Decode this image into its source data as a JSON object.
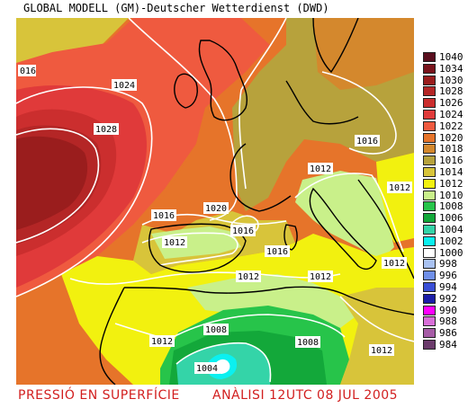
{
  "header": {
    "title": "GLOBAL MODELL (GM)-Deutscher Wetterdienst (DWD)"
  },
  "footer": {
    "left": "PRESSIÓ EN SUPERFÍCIE",
    "right": "ANÀLISI 12UTC 08 JUL 2005"
  },
  "legend": [
    {
      "label": "1040",
      "color": "#5a0f1e"
    },
    {
      "label": "1034",
      "color": "#7a141c"
    },
    {
      "label": "1030",
      "color": "#9a1d1d"
    },
    {
      "label": "1028",
      "color": "#b42626"
    },
    {
      "label": "1026",
      "color": "#cb2e2e"
    },
    {
      "label": "1024",
      "color": "#e03a3a"
    },
    {
      "label": "1022",
      "color": "#ef5a3f"
    },
    {
      "label": "1020",
      "color": "#e6742a"
    },
    {
      "label": "1018",
      "color": "#d4882d"
    },
    {
      "label": "1016",
      "color": "#b7a23c"
    },
    {
      "label": "1014",
      "color": "#d8c43a"
    },
    {
      "label": "1012",
      "color": "#f2f10f"
    },
    {
      "label": "1010",
      "color": "#c9f08a"
    },
    {
      "label": "1008",
      "color": "#27c44a"
    },
    {
      "label": "1006",
      "color": "#13a83a"
    },
    {
      "label": "1004",
      "color": "#34d4a8"
    },
    {
      "label": "1002",
      "color": "#0bf0f0"
    },
    {
      "label": "1000",
      "color": "#ffffff"
    },
    {
      "label": "998",
      "color": "#a9c2f2"
    },
    {
      "label": "996",
      "color": "#6f8fe8"
    },
    {
      "label": "994",
      "color": "#3a4fd6"
    },
    {
      "label": "992",
      "color": "#1c1ea8"
    },
    {
      "label": "990",
      "color": "#ff00ff"
    },
    {
      "label": "988",
      "color": "#d96fd9"
    },
    {
      "label": "986",
      "color": "#a65ca6"
    },
    {
      "label": "984",
      "color": "#6b3b6b"
    }
  ],
  "isobar_labels": [
    "016",
    "1024",
    "1028",
    "1020",
    "1016",
    "1016",
    "1016",
    "1012",
    "1012",
    "1016",
    "1012",
    "1012",
    "1012",
    "1012",
    "1008",
    "1008",
    "1004",
    "1012",
    "1016",
    "1012"
  ]
}
